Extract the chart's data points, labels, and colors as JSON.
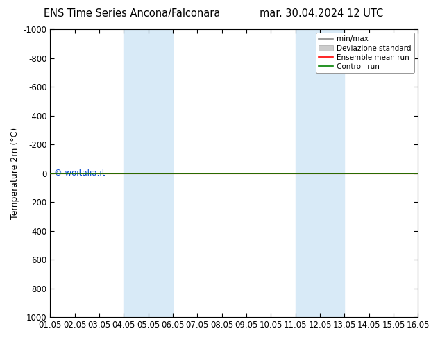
{
  "title_left": "ENS Time Series Ancona/Falconara",
  "title_right": "mar. 30.04.2024 12 UTC",
  "ylabel": "Temperature 2m (°C)",
  "ylim_bottom": 1000,
  "ylim_top": -1000,
  "xlim_min": 0,
  "xlim_max": 15,
  "xtick_labels": [
    "01.05",
    "02.05",
    "03.05",
    "04.05",
    "05.05",
    "06.05",
    "07.05",
    "08.05",
    "09.05",
    "10.05",
    "11.05",
    "12.05",
    "13.05",
    "14.05",
    "15.05",
    "16.05"
  ],
  "ytick_values": [
    -1000,
    -800,
    -600,
    -400,
    -200,
    0,
    200,
    400,
    600,
    800,
    1000
  ],
  "shaded_bands": [
    {
      "xmin": 3,
      "xmax": 5,
      "color": "#d8eaf7"
    },
    {
      "xmin": 10,
      "xmax": 12,
      "color": "#d8eaf7"
    }
  ],
  "control_run_y": 0,
  "ensemble_mean_y": 0,
  "control_run_color": "#008000",
  "ensemble_mean_color": "#ff0000",
  "minmax_color": "#888888",
  "devstd_color": "#cccccc",
  "watermark": "© woitalia.it",
  "watermark_color": "#0044cc",
  "background_color": "#ffffff",
  "plot_bg_color": "#ffffff",
  "legend_entries": [
    "min/max",
    "Deviazione standard",
    "Ensemble mean run",
    "Controll run"
  ],
  "title_fontsize": 10.5,
  "axis_fontsize": 9,
  "tick_fontsize": 8.5,
  "legend_fontsize": 7.5
}
